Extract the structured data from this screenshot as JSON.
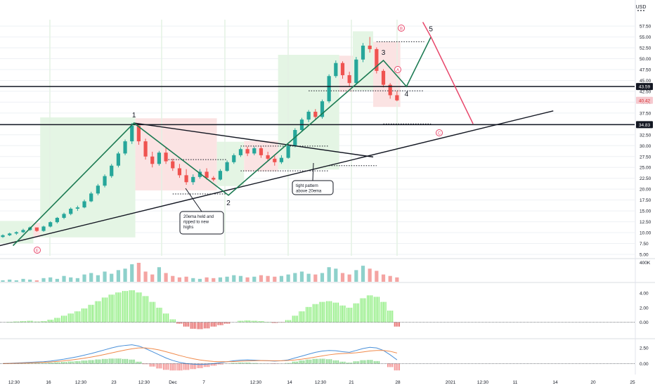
{
  "currency": "USD",
  "menu_icon": "three-dots-icon",
  "colors": {
    "up": "#26a69a",
    "down": "#ef5350",
    "up_zone": "#e4f5e4",
    "down_zone": "#fbe3e3",
    "wave": "#1b7a52",
    "corr": "#e8466a",
    "level": "#131722",
    "grid": "#eef0f4",
    "vgrid": "#e4f2e4",
    "hist_up": "#7bea6a",
    "hist_down": "#e04848",
    "macd": "#4a90d9",
    "signal": "#f08a4b",
    "price_tag_bg": "#131722",
    "last_tag_bg": "#f6c9cf",
    "last_tag_fg": "#d32f2f"
  },
  "chart_data": {
    "type": "candlestick",
    "title": "",
    "price_axis": {
      "ticks": [
        "57.50",
        "55.00",
        "52.50",
        "50.00",
        "47.50",
        "45.00",
        "42.50",
        "40.00",
        "37.50",
        "35.00",
        "32.50",
        "30.00",
        "27.50",
        "25.00",
        "22.50",
        "20.00",
        "17.50",
        "15.00",
        "12.50",
        "10.00",
        "7.50",
        "5.00"
      ],
      "tags": [
        {
          "label": "43.59",
          "value": 43.59,
          "style": "level"
        },
        {
          "label": "40.42",
          "value": 40.42,
          "style": "last"
        },
        {
          "label": "34.83",
          "value": 34.83,
          "style": "level"
        }
      ]
    },
    "time_axis": {
      "ticks": [
        "12:30",
        "16",
        "12:30",
        "23",
        "12:30",
        "Dec",
        "7",
        "12:30",
        "14",
        "12:30",
        "21",
        "28",
        "2021",
        "12:30",
        "11",
        "14",
        "20",
        "25"
      ]
    },
    "candles": [
      [
        9.0,
        9.6,
        8.8,
        9.4
      ],
      [
        9.4,
        10.0,
        9.2,
        9.8
      ],
      [
        9.8,
        10.3,
        9.5,
        10.1
      ],
      [
        10.1,
        10.9,
        9.9,
        10.6
      ],
      [
        10.6,
        11.4,
        10.4,
        11.2
      ],
      [
        11.2,
        11.0,
        10.2,
        10.4
      ],
      [
        10.4,
        11.6,
        10.2,
        11.4
      ],
      [
        11.4,
        12.6,
        11.2,
        12.4
      ],
      [
        12.4,
        13.6,
        12.1,
        13.4
      ],
      [
        13.4,
        14.6,
        13.1,
        14.3
      ],
      [
        14.3,
        15.8,
        14.0,
        15.5
      ],
      [
        15.5,
        16.2,
        15.0,
        15.8
      ],
      [
        15.8,
        17.6,
        15.6,
        17.2
      ],
      [
        17.2,
        19.4,
        17.0,
        19.0
      ],
      [
        19.0,
        21.2,
        18.6,
        20.8
      ],
      [
        20.8,
        23.4,
        20.4,
        23.0
      ],
      [
        23.0,
        25.8,
        22.6,
        25.4
      ],
      [
        25.4,
        28.6,
        25.0,
        28.2
      ],
      [
        28.2,
        31.4,
        27.8,
        31.0
      ],
      [
        31.0,
        35.2,
        30.4,
        34.6
      ],
      [
        34.6,
        35.0,
        30.2,
        31.0
      ],
      [
        31.0,
        31.6,
        26.8,
        27.5
      ],
      [
        27.5,
        28.6,
        25.0,
        25.8
      ],
      [
        25.8,
        28.8,
        25.4,
        28.4
      ],
      [
        28.4,
        29.6,
        25.8,
        26.4
      ],
      [
        26.4,
        27.0,
        24.2,
        24.8
      ],
      [
        24.8,
        25.8,
        22.6,
        23.2
      ],
      [
        23.2,
        24.6,
        21.0,
        21.6
      ],
      [
        21.6,
        23.4,
        21.0,
        22.8
      ],
      [
        22.8,
        24.6,
        22.4,
        24.0
      ],
      [
        24.0,
        24.8,
        22.2,
        22.6
      ],
      [
        22.6,
        23.0,
        21.8,
        22.2
      ],
      [
        22.2,
        24.6,
        22.0,
        24.2
      ],
      [
        24.2,
        26.6,
        24.0,
        26.2
      ],
      [
        26.2,
        28.2,
        25.8,
        27.8
      ],
      [
        27.8,
        29.6,
        27.4,
        29.2
      ],
      [
        29.2,
        29.8,
        27.6,
        28.2
      ],
      [
        28.2,
        29.8,
        27.8,
        29.4
      ],
      [
        29.4,
        29.8,
        27.2,
        27.8
      ],
      [
        27.8,
        28.6,
        26.4,
        27.0
      ],
      [
        27.0,
        27.6,
        25.4,
        26.2
      ],
      [
        26.2,
        27.8,
        25.8,
        27.2
      ],
      [
        27.2,
        30.4,
        27.0,
        30.0
      ],
      [
        30.0,
        34.0,
        29.6,
        33.6
      ],
      [
        33.6,
        36.4,
        33.2,
        36.0
      ],
      [
        36.0,
        38.2,
        35.4,
        37.8
      ],
      [
        37.8,
        38.4,
        36.0,
        36.6
      ],
      [
        36.6,
        40.6,
        36.2,
        40.2
      ],
      [
        40.2,
        46.4,
        39.8,
        46.0
      ],
      [
        46.0,
        49.6,
        45.6,
        49.0
      ],
      [
        49.0,
        49.4,
        45.4,
        46.2
      ],
      [
        46.2,
        47.0,
        43.6,
        44.4
      ],
      [
        44.4,
        50.4,
        44.0,
        49.8
      ],
      [
        49.8,
        53.6,
        49.2,
        53.0
      ],
      [
        53.0,
        55.0,
        51.4,
        52.2
      ],
      [
        52.2,
        52.6,
        46.6,
        47.2
      ],
      [
        47.2,
        47.6,
        43.4,
        44.0
      ],
      [
        44.0,
        44.4,
        40.8,
        41.6
      ],
      [
        41.6,
        42.6,
        40.2,
        40.42
      ]
    ],
    "zones": [
      {
        "from_candle": 0,
        "to_candle": 4,
        "type": "up"
      },
      {
        "from_candle": 5,
        "to_candle": 5,
        "type": "down"
      },
      {
        "from_candle": 6,
        "to_candle": 19,
        "type": "up"
      },
      {
        "from_candle": 20,
        "to_candle": 31,
        "type": "down"
      },
      {
        "from_candle": 32,
        "to_candle": 35,
        "type": "up"
      },
      {
        "from_candle": 36,
        "to_candle": 40,
        "type": "down"
      },
      {
        "from_candle": 41,
        "to_candle": 49,
        "type": "up"
      },
      {
        "from_candle": 50,
        "to_candle": 51,
        "type": "down"
      },
      {
        "from_candle": 52,
        "to_candle": 54,
        "type": "up"
      },
      {
        "from_candle": 55,
        "to_candle": 58,
        "type": "down"
      }
    ],
    "wave_points": [
      {
        "candle": 1.5,
        "price": 7.0,
        "label": ""
      },
      {
        "candle": 19.3,
        "price": 35.2,
        "label": "1"
      },
      {
        "candle": 33.2,
        "price": 18.6,
        "label": "2"
      },
      {
        "candle": 56.0,
        "price": 49.6,
        "label": "3"
      },
      {
        "candle": 59.4,
        "price": 43.6,
        "label": "4"
      },
      {
        "candle": 63.0,
        "price": 55.0,
        "label": "5"
      }
    ],
    "corr_points": [
      {
        "candle": 61.8,
        "price": 58.4,
        "label": ""
      },
      {
        "candle": 63.0,
        "price": 55.0,
        "label": ""
      },
      {
        "candle": 69.2,
        "price": 35.0,
        "label": ""
      }
    ],
    "circle_labels": [
      "E",
      "A",
      "B",
      "C"
    ],
    "levels": [
      43.59,
      34.83
    ],
    "trendlines": [
      {
        "from": {
          "candle": -1.0,
          "price": 6.8
        },
        "to": {
          "candle": 81.0,
          "price": 38.0
        }
      },
      {
        "from": {
          "candle": 19.3,
          "price": 35.2
        },
        "to": {
          "candle": 54.5,
          "price": 27.4
        }
      }
    ],
    "dotted_levels": [
      {
        "price": 18.9,
        "from_candle": 25,
        "to_candle": 33
      },
      {
        "price": 26.8,
        "from_candle": 24,
        "to_candle": 33
      },
      {
        "price": 29.9,
        "from_candle": 35,
        "to_candle": 48
      },
      {
        "price": 24.2,
        "from_candle": 35,
        "to_candle": 48
      },
      {
        "price": 25.4,
        "from_candle": 48,
        "to_candle": 55
      },
      {
        "price": 42.6,
        "from_candle": 45,
        "to_candle": 62
      },
      {
        "price": 35.0,
        "from_candle": 56,
        "to_candle": 63
      },
      {
        "price": 53.9,
        "from_candle": 55,
        "to_candle": 62
      }
    ],
    "notes": [
      {
        "lines": [
          "20ema held and",
          "ripped to new",
          "highs"
        ]
      },
      {
        "lines": [
          "tight pattern",
          "above 20ema"
        ]
      }
    ],
    "volume": {
      "axis_label": "400K",
      "values": [
        2,
        3,
        2,
        4,
        3,
        2,
        5,
        6,
        4,
        8,
        6,
        5,
        10,
        12,
        9,
        14,
        11,
        16,
        18,
        24,
        26,
        14,
        10,
        20,
        12,
        8,
        6,
        7,
        5,
        4,
        6,
        5,
        6,
        7,
        9,
        8,
        6,
        7,
        9,
        8,
        7,
        8,
        10,
        12,
        14,
        11,
        10,
        12,
        20,
        18,
        12,
        10,
        16,
        22,
        18,
        15,
        10,
        8,
        6
      ]
    },
    "oscillator": {
      "ticks": [
        "4.00",
        "2.00",
        "0.00"
      ],
      "values": [
        0.0,
        0.05,
        0.1,
        0.15,
        0.2,
        0.1,
        0.15,
        0.35,
        0.6,
        0.9,
        1.2,
        1.5,
        1.9,
        2.4,
        2.9,
        3.4,
        3.8,
        4.1,
        4.3,
        4.4,
        4.1,
        3.6,
        2.8,
        2.0,
        1.2,
        0.4,
        -0.2,
        -0.6,
        -0.9,
        -0.95,
        -0.85,
        -0.6,
        -0.4,
        -0.2,
        0.0,
        0.2,
        0.25,
        0.2,
        0.15,
        0.05,
        -0.1,
        -0.05,
        0.3,
        0.9,
        1.5,
        2.1,
        2.5,
        2.8,
        2.9,
        2.7,
        2.3,
        2.0,
        2.6,
        3.3,
        3.7,
        3.5,
        2.8,
        1.6,
        -0.6
      ]
    },
    "macd_pane": {
      "ticks": [
        "2.50",
        "0.00"
      ],
      "macd": [
        0.0,
        0.05,
        0.1,
        0.15,
        0.2,
        0.25,
        0.3,
        0.4,
        0.55,
        0.7,
        0.9,
        1.1,
        1.35,
        1.6,
        1.9,
        2.2,
        2.5,
        2.75,
        2.9,
        3.0,
        2.8,
        2.4,
        1.9,
        1.4,
        0.9,
        0.5,
        0.2,
        0.0,
        -0.1,
        -0.15,
        -0.1,
        0.0,
        0.15,
        0.3,
        0.45,
        0.55,
        0.6,
        0.55,
        0.5,
        0.45,
        0.4,
        0.45,
        0.6,
        0.9,
        1.2,
        1.5,
        1.8,
        2.0,
        2.1,
        2.05,
        1.9,
        1.8,
        2.1,
        2.4,
        2.6,
        2.5,
        2.1,
        1.4,
        0.6
      ],
      "signal": [
        0.0,
        0.02,
        0.05,
        0.08,
        0.12,
        0.16,
        0.2,
        0.26,
        0.34,
        0.44,
        0.56,
        0.7,
        0.86,
        1.04,
        1.24,
        1.46,
        1.7,
        1.94,
        2.16,
        2.36,
        2.5,
        2.5,
        2.38,
        2.18,
        1.9,
        1.6,
        1.3,
        1.02,
        0.78,
        0.58,
        0.44,
        0.34,
        0.3,
        0.3,
        0.33,
        0.38,
        0.43,
        0.46,
        0.48,
        0.47,
        0.46,
        0.46,
        0.5,
        0.58,
        0.7,
        0.86,
        1.04,
        1.22,
        1.4,
        1.53,
        1.6,
        1.64,
        1.73,
        1.86,
        2.01,
        2.1,
        2.1,
        1.96,
        1.69
      ],
      "hist": [
        0.0,
        0.03,
        0.05,
        0.07,
        0.08,
        0.09,
        0.1,
        0.14,
        0.21,
        0.26,
        0.34,
        0.4,
        0.49,
        0.56,
        0.66,
        0.74,
        0.8,
        0.81,
        0.74,
        0.64,
        0.3,
        -0.1,
        -0.48,
        -0.78,
        -1.0,
        -1.1,
        -1.1,
        -1.02,
        -0.88,
        -0.73,
        -0.54,
        -0.34,
        -0.15,
        0.0,
        0.12,
        0.17,
        0.17,
        0.09,
        0.02,
        -0.02,
        -0.06,
        -0.01,
        0.1,
        0.32,
        0.5,
        0.64,
        0.76,
        0.78,
        0.7,
        0.52,
        0.3,
        0.16,
        0.37,
        0.54,
        0.59,
        0.4,
        0.0,
        -0.56,
        -1.09
      ]
    }
  }
}
